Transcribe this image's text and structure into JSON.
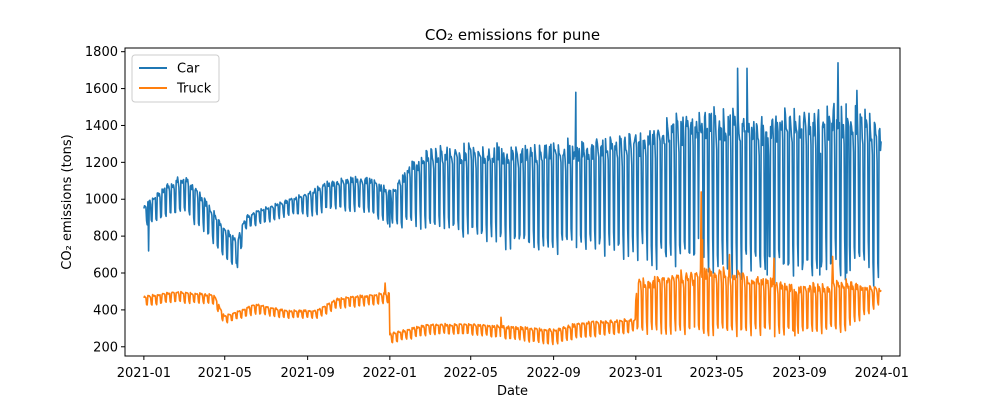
{
  "chart_data": {
    "type": "line",
    "title": "CO₂ emissions for pune",
    "xlabel": "Date",
    "ylabel": "CO₂ emissions (tons)",
    "ylim": [
      150,
      1820
    ],
    "xlim": [
      "2020-12-04",
      "2024-01-28"
    ],
    "yticks": [
      200,
      400,
      600,
      800,
      1000,
      1200,
      1400,
      1600,
      1800
    ],
    "xticks": [
      "2021-01",
      "2021-05",
      "2021-09",
      "2022-01",
      "2022-05",
      "2022-09",
      "2023-01",
      "2023-05",
      "2023-09",
      "2024-01"
    ],
    "grid": false,
    "legend_position": "top-left",
    "series": [
      {
        "name": "Car",
        "color": "#1f77b4",
        "style": "weekly-oscillating",
        "trend": [
          [
            "2021-01-01",
            920,
            80
          ],
          [
            "2021-02-01",
            1000,
            130
          ],
          [
            "2021-03-01",
            1040,
            150
          ],
          [
            "2021-04-01",
            930,
            130
          ],
          [
            "2021-05-01",
            770,
            120
          ],
          [
            "2021-05-20",
            720,
            110
          ],
          [
            "2021-06-01",
            880,
            50
          ],
          [
            "2021-07-01",
            920,
            60
          ],
          [
            "2021-08-01",
            960,
            60
          ],
          [
            "2021-09-01",
            980,
            90
          ],
          [
            "2021-10-01",
            1030,
            110
          ],
          [
            "2021-11-01",
            1040,
            120
          ],
          [
            "2021-12-01",
            1040,
            130
          ],
          [
            "2022-01-01",
            960,
            140
          ],
          [
            "2022-02-01",
            1050,
            240
          ],
          [
            "2022-03-01",
            1090,
            300
          ],
          [
            "2022-05-01",
            1080,
            350
          ],
          [
            "2022-07-01",
            1050,
            380
          ],
          [
            "2022-09-01",
            1050,
            400
          ],
          [
            "2022-11-01",
            1070,
            430
          ],
          [
            "2023-01-01",
            1070,
            480
          ],
          [
            "2023-03-01",
            1100,
            560
          ],
          [
            "2023-05-01",
            1110,
            600
          ],
          [
            "2023-07-01",
            1080,
            620
          ],
          [
            "2023-09-01",
            1080,
            640
          ],
          [
            "2023-11-01",
            1120,
            660
          ],
          [
            "2023-12-31",
            1050,
            600
          ]
        ],
        "spikes": [
          [
            "2021-01-08",
            720
          ],
          [
            "2021-02-20",
            1120
          ],
          [
            "2021-05-20",
            630
          ],
          [
            "2022-01-01",
            850
          ],
          [
            "2022-10-04",
            1580
          ],
          [
            "2023-02-01",
            620
          ],
          [
            "2023-04-05",
            1470
          ],
          [
            "2023-06-01",
            1710
          ],
          [
            "2023-06-15",
            1710
          ],
          [
            "2023-07-15",
            590
          ],
          [
            "2023-10-01",
            590
          ],
          [
            "2023-10-28",
            1740
          ],
          [
            "2023-11-10",
            600
          ],
          [
            "2023-11-25",
            1590
          ]
        ]
      },
      {
        "name": "Truck",
        "color": "#ff7f0e",
        "style": "weekly-oscillating",
        "trend": [
          [
            "2021-01-01",
            450,
            40
          ],
          [
            "2021-02-15",
            475,
            40
          ],
          [
            "2021-04-15",
            460,
            40
          ],
          [
            "2021-04-30",
            350,
            30
          ],
          [
            "2021-05-25",
            380,
            30
          ],
          [
            "2021-06-15",
            410,
            40
          ],
          [
            "2021-08-01",
            380,
            30
          ],
          [
            "2021-09-15",
            380,
            30
          ],
          [
            "2021-10-15",
            440,
            40
          ],
          [
            "2021-12-31",
            470,
            40
          ],
          [
            "2022-01-01",
            250,
            40
          ],
          [
            "2022-03-01",
            300,
            40
          ],
          [
            "2022-05-01",
            300,
            40
          ],
          [
            "2022-07-01",
            280,
            50
          ],
          [
            "2022-09-01",
            260,
            60
          ],
          [
            "2022-10-15",
            300,
            60
          ],
          [
            "2022-12-31",
            320,
            50
          ],
          [
            "2023-01-02",
            440,
            200
          ],
          [
            "2023-03-01",
            460,
            230
          ],
          [
            "2023-05-01",
            470,
            260
          ],
          [
            "2023-07-01",
            450,
            230
          ],
          [
            "2023-09-01",
            420,
            180
          ],
          [
            "2023-11-01",
            440,
            200
          ],
          [
            "2023-12-31",
            480,
            60
          ]
        ],
        "spikes": [
          [
            "2021-12-25",
            545
          ],
          [
            "2022-06-15",
            360
          ],
          [
            "2023-03-28",
            560
          ],
          [
            "2023-04-08",
            1040
          ],
          [
            "2023-04-10",
            780
          ],
          [
            "2023-05-20",
            700
          ],
          [
            "2023-07-25",
            680
          ],
          [
            "2023-10-20",
            690
          ],
          [
            "2023-08-25",
            260
          ]
        ]
      }
    ]
  }
}
